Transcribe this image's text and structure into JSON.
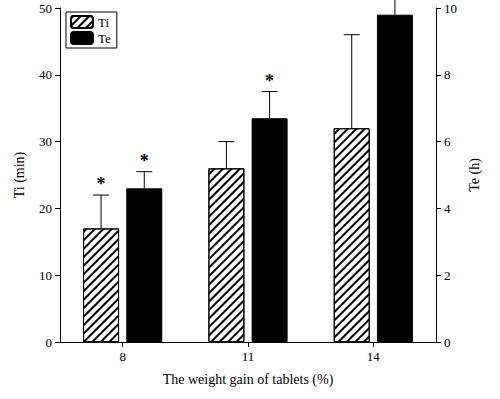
{
  "chart_data": {
    "type": "bar",
    "categories": [
      "8",
      "11",
      "14"
    ],
    "x_label": "The weight gain of tablets (%)",
    "y_label": "Ti (min)",
    "y2_label": "Te (h)",
    "ylim": [
      0,
      50
    ],
    "yticks": [
      0,
      10,
      20,
      30,
      40,
      50
    ],
    "y2lim": [
      0,
      10
    ],
    "y2ticks": [
      0,
      2,
      4,
      6,
      8,
      10
    ],
    "legend": "upper left",
    "grid": false,
    "series": [
      {
        "name": "Ti",
        "color": "#ffffff",
        "values": [
          17,
          26,
          32
        ],
        "errors": [
          5,
          4,
          14
        ],
        "annotations": [
          "*",
          null,
          null
        ]
      },
      {
        "name": "Te",
        "axis": "y2",
        "color": "#000000",
        "values": [
          4.6,
          6.7,
          9.8
        ],
        "errors": [
          0.5,
          0.8,
          0.7
        ],
        "annotations": [
          "*",
          "*",
          null
        ]
      }
    ]
  }
}
